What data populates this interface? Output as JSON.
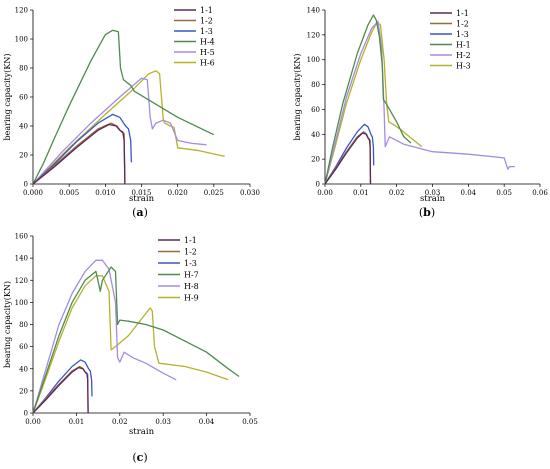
{
  "chart_data": [
    {
      "type": "line",
      "caption": "(a)",
      "xlabel": "strain",
      "ylabel": "bearing capacity(KN)",
      "xlim": [
        0,
        0.03
      ],
      "ylim": [
        0,
        120
      ],
      "xticks": [
        "0.000",
        "0.005",
        "0.010",
        "0.015",
        "0.020",
        "0.025",
        "0.030"
      ],
      "xtick_values": [
        0,
        0.005,
        0.01,
        0.015,
        0.02,
        0.025,
        0.03
      ],
      "yticks": [
        "0",
        "20",
        "40",
        "60",
        "80",
        "100",
        "120"
      ],
      "ytick_values": [
        0,
        20,
        40,
        60,
        80,
        100,
        120
      ],
      "legend_position": "top-right",
      "series": [
        {
          "name": "1-1",
          "color": "#5b2a5b",
          "x": [
            0,
            0.003,
            0.006,
            0.009,
            0.0105,
            0.0115,
            0.012,
            0.0124,
            0.0126,
            0.0127
          ],
          "y": [
            0,
            12,
            25,
            37,
            41,
            40,
            37,
            36,
            30,
            0
          ]
        },
        {
          "name": "1-2",
          "color": "#9a6a3a",
          "x": [
            0,
            0.003,
            0.006,
            0.009,
            0.0108,
            0.0116,
            0.0122,
            0.0126,
            0.0127
          ],
          "y": [
            0,
            13,
            26,
            38,
            42,
            40,
            36,
            35,
            0
          ]
        },
        {
          "name": "1-3",
          "color": "#3a55c8",
          "x": [
            0,
            0.003,
            0.006,
            0.009,
            0.011,
            0.012,
            0.0128,
            0.0132,
            0.0135,
            0.0136
          ],
          "y": [
            0,
            14,
            29,
            42,
            48,
            46,
            40,
            38,
            30,
            15
          ]
        },
        {
          "name": "H-4",
          "color": "#4f8a4f",
          "x": [
            0,
            0.0015,
            0.003,
            0.005,
            0.008,
            0.01,
            0.011,
            0.0118,
            0.0121,
            0.0125,
            0.013,
            0.0135,
            0.014,
            0.016,
            0.02,
            0.025
          ],
          "y": [
            0,
            15,
            32,
            54,
            85,
            103,
            106,
            105,
            80,
            72,
            70,
            68,
            64,
            58,
            46,
            34
          ]
        },
        {
          "name": "H-5",
          "color": "#a58be0",
          "x": [
            0,
            0.004,
            0.008,
            0.012,
            0.015,
            0.0158,
            0.0162,
            0.0165,
            0.017,
            0.018,
            0.019,
            0.02,
            0.022,
            0.024
          ],
          "y": [
            0,
            22,
            42,
            60,
            73,
            72,
            46,
            38,
            42,
            44,
            42,
            30,
            28,
            27
          ]
        },
        {
          "name": "H-6",
          "color": "#b5b22a",
          "x": [
            0,
            0.005,
            0.01,
            0.014,
            0.016,
            0.017,
            0.0175,
            0.018,
            0.0182,
            0.019,
            0.0195,
            0.02,
            0.023,
            0.0265
          ],
          "y": [
            0,
            25,
            48,
            66,
            76,
            78,
            76,
            45,
            42,
            40,
            39,
            25,
            23,
            19
          ]
        }
      ]
    },
    {
      "type": "line",
      "caption": "(b)",
      "xlabel": "strain",
      "ylabel": "bearing capacity(KN)",
      "xlim": [
        0,
        0.06
      ],
      "ylim": [
        0,
        140
      ],
      "xticks": [
        "0.00",
        "0.01",
        "0.02",
        "0.03",
        "0.04",
        "0.05",
        "0.06"
      ],
      "xtick_values": [
        0,
        0.01,
        0.02,
        0.03,
        0.04,
        0.05,
        0.06
      ],
      "yticks": [
        "0",
        "20",
        "40",
        "60",
        "80",
        "100",
        "120",
        "140"
      ],
      "ytick_values": [
        0,
        20,
        40,
        60,
        80,
        100,
        120,
        140
      ],
      "legend_position": "top-right",
      "series": [
        {
          "name": "1-1",
          "color": "#5b2a5b",
          "x": [
            0,
            0.003,
            0.006,
            0.009,
            0.0105,
            0.0115,
            0.012,
            0.0124,
            0.0126,
            0.0127
          ],
          "y": [
            0,
            12,
            25,
            37,
            41,
            40,
            37,
            36,
            30,
            0
          ]
        },
        {
          "name": "1-2",
          "color": "#9a6a3a",
          "x": [
            0,
            0.003,
            0.006,
            0.009,
            0.0108,
            0.0116,
            0.0122,
            0.0126,
            0.0127
          ],
          "y": [
            0,
            13,
            26,
            38,
            42,
            40,
            36,
            35,
            0
          ]
        },
        {
          "name": "1-3",
          "color": "#3a55c8",
          "x": [
            0,
            0.003,
            0.006,
            0.009,
            0.011,
            0.012,
            0.0128,
            0.0132,
            0.0135,
            0.0136
          ],
          "y": [
            0,
            14,
            29,
            42,
            48,
            46,
            40,
            38,
            30,
            15
          ]
        },
        {
          "name": "H-1",
          "color": "#4f8a4f",
          "x": [
            0,
            0.002,
            0.005,
            0.009,
            0.012,
            0.0135,
            0.0143,
            0.0152,
            0.016,
            0.0163,
            0.017,
            0.018,
            0.02,
            0.022,
            0.024
          ],
          "y": [
            0,
            28,
            65,
            105,
            128,
            136,
            132,
            118,
            95,
            68,
            65,
            60,
            50,
            38,
            33
          ]
        },
        {
          "name": "H-2",
          "color": "#a58be0",
          "x": [
            0,
            0.003,
            0.006,
            0.01,
            0.013,
            0.0148,
            0.0158,
            0.0165,
            0.0168,
            0.018,
            0.022,
            0.03,
            0.04,
            0.05,
            0.051,
            0.0515,
            0.053
          ],
          "y": [
            0,
            35,
            70,
            105,
            125,
            131,
            110,
            60,
            30,
            38,
            32,
            26,
            24,
            21,
            12,
            14,
            14
          ]
        },
        {
          "name": "H-3",
          "color": "#b5b22a",
          "x": [
            0,
            0.003,
            0.006,
            0.01,
            0.013,
            0.0145,
            0.0155,
            0.0165,
            0.0172,
            0.0178,
            0.019,
            0.021,
            0.024,
            0.027
          ],
          "y": [
            0,
            32,
            65,
            100,
            122,
            130,
            128,
            100,
            65,
            50,
            48,
            44,
            37,
            30
          ]
        }
      ]
    },
    {
      "type": "line",
      "caption": "(c)",
      "xlabel": "strain",
      "ylabel": "bearing capacity(KN)",
      "xlim": [
        0,
        0.05
      ],
      "ylim": [
        0,
        160
      ],
      "xticks": [
        "0.00",
        "0.01",
        "0.02",
        "0.03",
        "0.04",
        "0.05"
      ],
      "xtick_values": [
        0,
        0.01,
        0.02,
        0.03,
        0.04,
        0.05
      ],
      "yticks": [
        "0",
        "20",
        "40",
        "60",
        "80",
        "100",
        "120",
        "140",
        "160"
      ],
      "ytick_values": [
        0,
        20,
        40,
        60,
        80,
        100,
        120,
        140,
        160
      ],
      "legend_position": "top-right",
      "series": [
        {
          "name": "1-1",
          "color": "#5b2a5b",
          "x": [
            0,
            0.003,
            0.006,
            0.009,
            0.0105,
            0.0115,
            0.012,
            0.0124,
            0.0126,
            0.0127
          ],
          "y": [
            0,
            12,
            25,
            37,
            41,
            40,
            37,
            36,
            30,
            0
          ]
        },
        {
          "name": "1-2",
          "color": "#9a6a3a",
          "x": [
            0,
            0.003,
            0.006,
            0.009,
            0.0108,
            0.0116,
            0.0122,
            0.0126,
            0.0127
          ],
          "y": [
            0,
            13,
            26,
            38,
            42,
            40,
            36,
            35,
            0
          ]
        },
        {
          "name": "1-3",
          "color": "#3a55c8",
          "x": [
            0,
            0.003,
            0.006,
            0.009,
            0.011,
            0.012,
            0.0128,
            0.0132,
            0.0135,
            0.0136
          ],
          "y": [
            0,
            14,
            29,
            42,
            48,
            46,
            40,
            38,
            30,
            15
          ]
        },
        {
          "name": "H-7",
          "color": "#4f8a4f",
          "x": [
            0,
            0.003,
            0.006,
            0.009,
            0.012,
            0.0145,
            0.0155,
            0.016,
            0.018,
            0.019,
            0.0195,
            0.02,
            0.022,
            0.026,
            0.03,
            0.035,
            0.04,
            0.045,
            0.0475
          ],
          "y": [
            0,
            35,
            70,
            100,
            120,
            128,
            110,
            120,
            132,
            128,
            80,
            84,
            83,
            80,
            75,
            65,
            55,
            40,
            33
          ]
        },
        {
          "name": "H-8",
          "color": "#a58be0",
          "x": [
            0,
            0.003,
            0.006,
            0.009,
            0.012,
            0.0145,
            0.016,
            0.0175,
            0.019,
            0.0195,
            0.02,
            0.021,
            0.023,
            0.026,
            0.03,
            0.033
          ],
          "y": [
            0,
            40,
            80,
            108,
            128,
            138,
            138,
            130,
            100,
            50,
            46,
            55,
            50,
            45,
            36,
            30
          ]
        },
        {
          "name": "H-9",
          "color": "#b5b22a",
          "x": [
            0,
            0.003,
            0.006,
            0.009,
            0.012,
            0.0145,
            0.016,
            0.0175,
            0.018,
            0.019,
            0.022,
            0.025,
            0.027,
            0.0275,
            0.028,
            0.029,
            0.035,
            0.04,
            0.045
          ],
          "y": [
            0,
            32,
            65,
            95,
            115,
            124,
            124,
            110,
            57,
            60,
            70,
            85,
            95,
            92,
            60,
            45,
            42,
            37,
            30
          ]
        }
      ]
    }
  ]
}
